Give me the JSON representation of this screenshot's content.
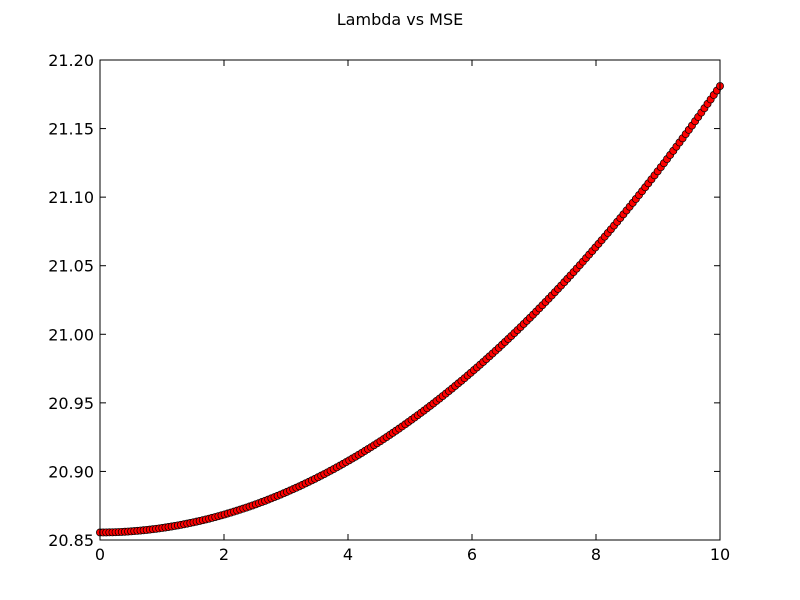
{
  "chart_data": {
    "type": "scatter",
    "title": "Lambda vs MSE",
    "xlabel": "",
    "ylabel": "",
    "xlim": [
      0,
      10
    ],
    "ylim": [
      20.85,
      21.2
    ],
    "x_ticks": [
      "0",
      "2",
      "4",
      "6",
      "8",
      "10"
    ],
    "y_ticks": [
      "20.85",
      "20.90",
      "20.95",
      "21.00",
      "21.05",
      "21.10",
      "21.15",
      "21.20"
    ],
    "grid": false,
    "marker_color": "#ff0000",
    "marker_edge_color": "#000000",
    "series": [
      {
        "x_range": [
          0,
          10
        ],
        "point_count": 200,
        "model": "quadratic",
        "y_at_0": 20.8555,
        "y_at_10": 21.181,
        "sample_points": [
          {
            "x": 0,
            "y": 20.855
          },
          {
            "x": 2,
            "y": 20.868
          },
          {
            "x": 4,
            "y": 20.91
          },
          {
            "x": 6,
            "y": 20.978
          },
          {
            "x": 8,
            "y": 21.07
          },
          {
            "x": 10,
            "y": 21.181
          }
        ]
      }
    ]
  }
}
